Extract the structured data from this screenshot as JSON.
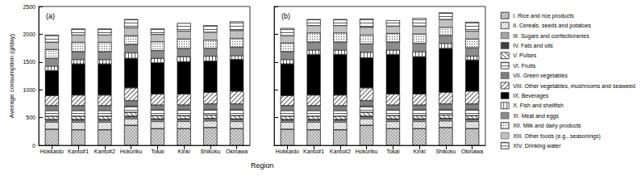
{
  "chart_data": [
    {
      "type": "bar",
      "title": "(a)",
      "stacked": true,
      "y_label": "Average consumption (g/day)",
      "x_label": "Region",
      "ylim": [
        0,
        2500
      ],
      "yticks": [
        0,
        500,
        1000,
        1500,
        2000,
        2500
      ],
      "categories": [
        "Hokkaido",
        "Kanto#1",
        "Kanto#2",
        "Hokuriku",
        "Tokai",
        "Kinki",
        "Shikoku",
        "Okinawa"
      ],
      "series": [
        {
          "name": "I. Rice and rice products",
          "color": "#d9d9d9",
          "values": [
            290,
            280,
            280,
            360,
            300,
            300,
            320,
            300
          ]
        },
        {
          "name": "II. Cereals, seeds and potatoes",
          "color": "#ffffff",
          "values": [
            130,
            140,
            140,
            120,
            130,
            130,
            120,
            130
          ]
        },
        {
          "name": "III. Sugars and confectioneries",
          "color": "#a6a6a6",
          "values": [
            30,
            30,
            30,
            30,
            30,
            30,
            30,
            30
          ]
        },
        {
          "name": "IV. Fats and oils",
          "color": "#404040",
          "values": [
            15,
            15,
            15,
            15,
            15,
            15,
            15,
            15
          ]
        },
        {
          "name": "V. Pulses",
          "color": "#ffffff",
          "values": [
            60,
            60,
            60,
            70,
            60,
            60,
            60,
            60
          ]
        },
        {
          "name": "VI. Fruits",
          "color": "#ffffff",
          "values": [
            100,
            100,
            100,
            110,
            100,
            100,
            100,
            110
          ]
        },
        {
          "name": "VII. Green vegetables",
          "color": "#808080",
          "values": [
            90,
            90,
            90,
            100,
            90,
            90,
            100,
            100
          ]
        },
        {
          "name": "VIII. Other vegetables, mushrooms and seaweed",
          "color": "#ffffff",
          "values": [
            180,
            190,
            190,
            230,
            200,
            200,
            210,
            230
          ]
        },
        {
          "name": "IX. Beverages",
          "color": "#000000",
          "values": [
            450,
            560,
            560,
            530,
            560,
            580,
            560,
            570
          ]
        },
        {
          "name": "X. Fish and shellfish",
          "color": "#ffffff",
          "values": [
            80,
            80,
            80,
            100,
            80,
            90,
            90,
            70
          ]
        },
        {
          "name": "XI. Meat and eggs",
          "color": "#8c8c8c",
          "values": [
            140,
            140,
            140,
            150,
            140,
            150,
            140,
            150
          ]
        },
        {
          "name": "XII. Milk and dairy products",
          "color": "#f2f2f2",
          "values": [
            160,
            170,
            170,
            160,
            160,
            170,
            150,
            160
          ]
        },
        {
          "name": "XIII. Other foods (e.g., seasonings)",
          "color": "#c0c0c0",
          "values": [
            130,
            130,
            130,
            140,
            130,
            140,
            140,
            140
          ]
        },
        {
          "name": "XIV. Drinking water",
          "color": "#ffffff",
          "values": [
            135,
            115,
            115,
            155,
            105,
            145,
            125,
            165
          ]
        }
      ]
    },
    {
      "type": "bar",
      "title": "(b)",
      "stacked": true,
      "tick_labels": "x",
      "ylim": [
        0,
        2500
      ],
      "yticks": [
        0,
        500,
        1000,
        1500,
        2000,
        2500
      ],
      "categories": [
        "Hokkaido",
        "Kanto#1",
        "Kanto#2",
        "Hokuriku",
        "Tokai",
        "Kinki",
        "Shikoku",
        "Okinawa"
      ],
      "series": [
        {
          "name": "I. Rice and rice products",
          "color": "#d9d9d9",
          "values": [
            290,
            280,
            280,
            360,
            300,
            300,
            320,
            300
          ]
        },
        {
          "name": "II. Cereals, seeds and potatoes",
          "color": "#ffffff",
          "values": [
            130,
            140,
            140,
            120,
            130,
            130,
            120,
            130
          ]
        },
        {
          "name": "III. Sugars and confectioneries",
          "color": "#a6a6a6",
          "values": [
            30,
            30,
            30,
            30,
            30,
            30,
            30,
            30
          ]
        },
        {
          "name": "IV. Fats and oils",
          "color": "#404040",
          "values": [
            15,
            15,
            15,
            15,
            15,
            15,
            15,
            15
          ]
        },
        {
          "name": "V. Pulses",
          "color": "#ffffff",
          "values": [
            60,
            60,
            60,
            70,
            60,
            60,
            60,
            60
          ]
        },
        {
          "name": "VI. Fruits",
          "color": "#ffffff",
          "values": [
            100,
            100,
            100,
            110,
            100,
            100,
            100,
            110
          ]
        },
        {
          "name": "VII. Green vegetables",
          "color": "#808080",
          "values": [
            90,
            90,
            90,
            100,
            90,
            90,
            100,
            100
          ]
        },
        {
          "name": "VIII. Other vegetables, mushrooms and seaweed",
          "color": "#ffffff",
          "values": [
            180,
            190,
            190,
            230,
            200,
            200,
            210,
            230
          ]
        },
        {
          "name": "IX. Beverages",
          "color": "#000000",
          "values": [
            570,
            730,
            730,
            540,
            710,
            670,
            790,
            560
          ]
        },
        {
          "name": "X. Fish and shellfish",
          "color": "#ffffff",
          "values": [
            80,
            80,
            80,
            100,
            80,
            90,
            90,
            70
          ]
        },
        {
          "name": "XI. Meat and eggs",
          "color": "#8c8c8c",
          "values": [
            140,
            140,
            140,
            150,
            140,
            150,
            140,
            150
          ]
        },
        {
          "name": "XII. Milk and dairy products",
          "color": "#f2f2f2",
          "values": [
            160,
            170,
            170,
            160,
            160,
            170,
            150,
            160
          ]
        },
        {
          "name": "XIII. Other foods (e.g., seasonings)",
          "color": "#c0c0c0",
          "values": [
            130,
            130,
            130,
            140,
            130,
            140,
            140,
            140
          ]
        },
        {
          "name": "XIV. Drinking water",
          "color": "#ffffff",
          "values": [
            135,
            115,
            115,
            155,
            105,
            145,
            125,
            165
          ]
        }
      ]
    }
  ]
}
